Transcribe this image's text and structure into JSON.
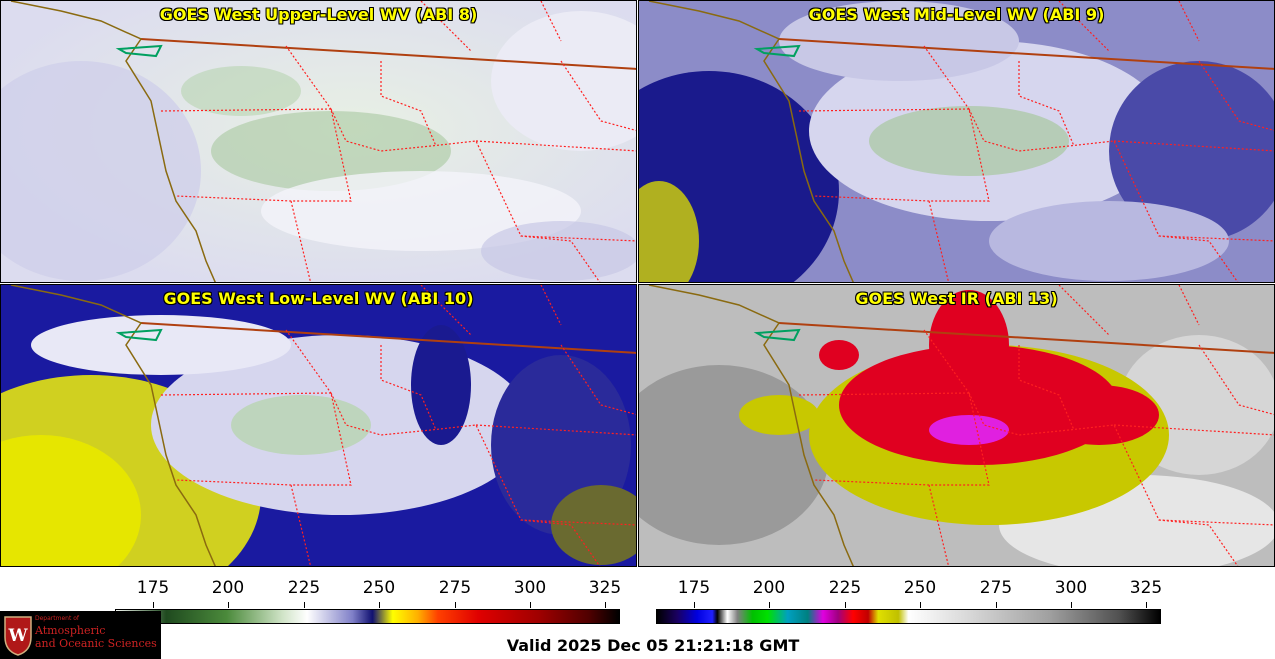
{
  "panels": [
    {
      "title": "GOES West Upper-Level WV (ABI 8)",
      "product": "wv-upper"
    },
    {
      "title": "GOES West Mid-Level WV (ABI 9)",
      "product": "wv-mid"
    },
    {
      "title": "GOES West Low-Level WV (ABI 10)",
      "product": "wv-low"
    },
    {
      "title": "GOES West IR (ABI 13)",
      "product": "ir"
    }
  ],
  "colorbars": [
    {
      "name": "water-vapor-scale",
      "ticks": [
        "175",
        "200",
        "225",
        "250",
        "275",
        "300",
        "325"
      ]
    },
    {
      "name": "infrared-scale",
      "ticks": [
        "175",
        "200",
        "225",
        "250",
        "275",
        "300",
        "325"
      ]
    }
  ],
  "logo": {
    "line1": "Department of",
    "line2": "Atmospheric",
    "line3": "and Oceanic Sciences",
    "emblem": "W"
  },
  "valid_time": "Valid 2025 Dec 05 21:21:18 GMT",
  "colors": {
    "title_text": "#ffff00",
    "state_borders": "#ff2020",
    "country_border": "#b04010",
    "coastline": "#8a6a10"
  }
}
